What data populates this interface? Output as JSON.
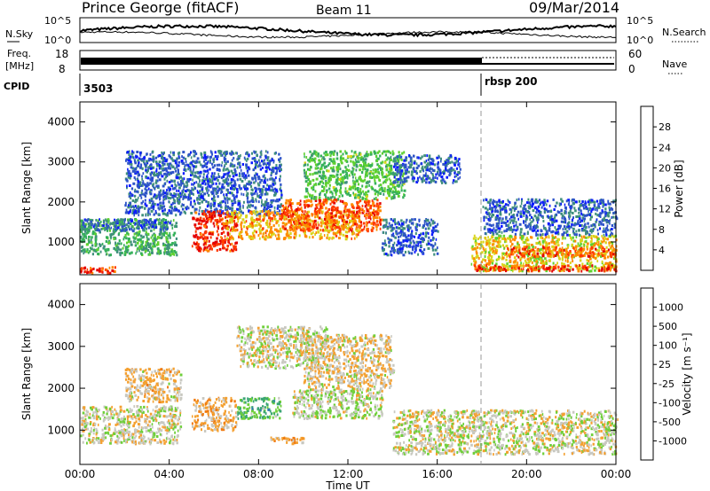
{
  "header": {
    "station": "Prince George (fitACF)",
    "beam": "Beam 11",
    "date": "09/Mar/2014"
  },
  "nsky_panel": {
    "left_label": "N.Sky",
    "right_label": "N.Search",
    "left_ticks": [
      "10^5",
      "10^0"
    ],
    "right_ticks": [
      "10^5",
      "10^0"
    ]
  },
  "freq_panel": {
    "left_label_line1": "Freq.",
    "left_label_line2": "[MHz]",
    "right_label": "Nave",
    "left_ticks": [
      "18",
      "8"
    ],
    "right_ticks": [
      "60",
      "0"
    ]
  },
  "cpid_panel": {
    "label": "CPID",
    "segments": [
      {
        "label": "3503",
        "start_hour": 0
      },
      {
        "label": "rbsp 200",
        "start_hour": 18
      }
    ]
  },
  "power_panel": {
    "ylabel": "Slant Range [km]",
    "yticks": [
      "4000",
      "3000",
      "2000",
      "1000"
    ],
    "colorbar_label": "Power [dB]",
    "colorbar_ticks": [
      "28",
      "24",
      "20",
      "16",
      "12",
      "8",
      "4"
    ],
    "colors": [
      "#0a1aff",
      "#2d53c8",
      "#3f8f7c",
      "#35b05a",
      "#5fd12f",
      "#d9d41a",
      "#ff8a00",
      "#ff3b00",
      "#e30000"
    ]
  },
  "velocity_panel": {
    "ylabel": "Slant Range [km]",
    "yticks": [
      "4000",
      "3000",
      "2000",
      "1000"
    ],
    "colorbar_label": "Velocity [m s⁻¹]",
    "colorbar_ticks": [
      "1000",
      "500",
      "100",
      "25",
      "-25",
      "-100",
      "-500",
      "-1000"
    ],
    "colors": [
      "#2f3dc8",
      "#2f78b0",
      "#3aa574",
      "#6fcf3a",
      "#c8c8c0",
      "#f4a030",
      "#f07a10",
      "#f03c00",
      "#e00000"
    ]
  },
  "x_axis": {
    "label": "Time UT",
    "ticks": [
      "00:00",
      "04:00",
      "08:00",
      "12:00",
      "16:00",
      "20:00",
      "00:00"
    ]
  },
  "chart_data": [
    {
      "type": "heatmap",
      "title": "Power",
      "x_range_hours": [
        0,
        24
      ],
      "y_range_km": [
        180,
        4500
      ],
      "regions": [
        {
          "t0": 0.0,
          "t1": 4.3,
          "r0": 700,
          "r1": 1600,
          "value_db": 12
        },
        {
          "t0": 0.0,
          "t1": 4.0,
          "r0": 1300,
          "r1": 1600,
          "value_db": 6
        },
        {
          "t0": 0.0,
          "t1": 1.6,
          "r0": 250,
          "r1": 400,
          "value_db": 28
        },
        {
          "t0": 2.0,
          "t1": 9.0,
          "r0": 1700,
          "r1": 3300,
          "value_db": 6
        },
        {
          "t0": 5.0,
          "t1": 7.0,
          "r0": 800,
          "r1": 1800,
          "value_db": 28
        },
        {
          "t0": 6.5,
          "t1": 12.5,
          "r0": 1100,
          "r1": 1800,
          "value_db": 22
        },
        {
          "t0": 9.0,
          "t1": 13.5,
          "r0": 1300,
          "r1": 2100,
          "value_db": 26
        },
        {
          "t0": 10.0,
          "t1": 14.5,
          "r0": 2100,
          "r1": 3300,
          "value_db": 14
        },
        {
          "t0": 13.5,
          "t1": 16.0,
          "r0": 700,
          "r1": 1600,
          "value_db": 6
        },
        {
          "t0": 14.0,
          "t1": 17.0,
          "r0": 2500,
          "r1": 3200,
          "value_db": 6
        },
        {
          "t0": 17.5,
          "t1": 24.0,
          "r0": 300,
          "r1": 1200,
          "value_db": 20
        },
        {
          "t0": 17.5,
          "t1": 24.0,
          "r0": 300,
          "r1": 450,
          "value_db": 28
        },
        {
          "t0": 19.0,
          "t1": 24.0,
          "r0": 650,
          "r1": 900,
          "value_db": 26
        },
        {
          "t0": 18.0,
          "t1": 24.0,
          "r0": 1200,
          "r1": 2100,
          "value_db": 6
        }
      ]
    },
    {
      "type": "heatmap",
      "title": "Velocity",
      "x_range_hours": [
        0,
        24
      ],
      "y_range_km": [
        180,
        4500
      ],
      "regions": [
        {
          "t0": 0.0,
          "t1": 4.5,
          "r0": 700,
          "r1": 1600,
          "value_ms": 0
        },
        {
          "t0": 2.0,
          "t1": 4.5,
          "r0": 1700,
          "r1": 2500,
          "value_ms": -120
        },
        {
          "t0": 5.0,
          "t1": 7.0,
          "r0": 1000,
          "r1": 1800,
          "value_ms": -250
        },
        {
          "t0": 7.0,
          "t1": 9.0,
          "r0": 1300,
          "r1": 1800,
          "value_ms": 400
        },
        {
          "t0": 9.5,
          "t1": 13.5,
          "r0": 1300,
          "r1": 2000,
          "value_ms": 80
        },
        {
          "t0": 10.0,
          "t1": 14.0,
          "r0": 2000,
          "r1": 3300,
          "value_ms": -100
        },
        {
          "t0": 7.0,
          "t1": 11.0,
          "r0": 2500,
          "r1": 3500,
          "value_ms": 0
        },
        {
          "t0": 14.0,
          "t1": 24.0,
          "r0": 450,
          "r1": 1500,
          "value_ms": 0
        },
        {
          "t0": 8.5,
          "t1": 10.0,
          "r0": 700,
          "r1": 850,
          "value_ms": -300
        }
      ]
    }
  ]
}
